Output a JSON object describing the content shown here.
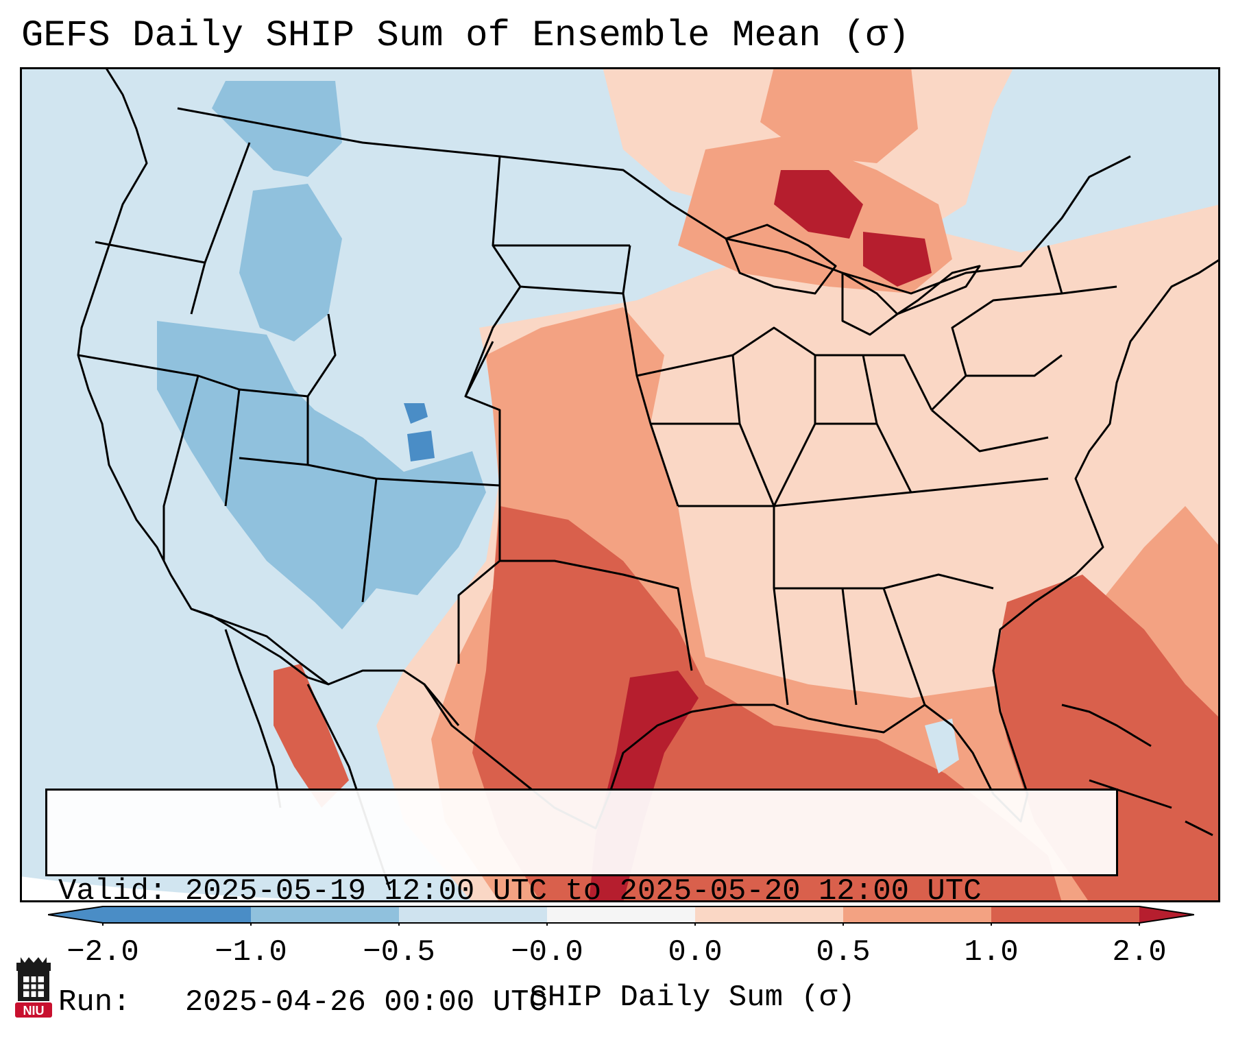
{
  "title": "GEFS Daily SHIP Sum of Ensemble Mean (σ)",
  "info": {
    "valid_label": "Valid:",
    "valid_value": "2025-05-19 12:00 UTC to 2025-05-20 12:00 UTC",
    "run_label": "Run:",
    "run_value": "2025-04-26 00:00 UTC"
  },
  "colorbar": {
    "label": "SHIP Daily Sum (σ)",
    "ticks": [
      "−2.0",
      "−1.0",
      "−0.5",
      "−0.0",
      "0.0",
      "0.5",
      "1.0",
      "2.0"
    ],
    "colors": [
      "#4a8dc6",
      "#90c1dd",
      "#cfe3ef",
      "#f5f5f5",
      "#fad7c5",
      "#f3a282",
      "#d9604c",
      "#b61e2e"
    ],
    "extend": "both"
  },
  "map_colors": {
    "ocean_background": "#d1e5f0",
    "outside_domain": "#ffffff",
    "borders": "#000000"
  },
  "logo": {
    "text": "NIU",
    "accent": "#c8102e"
  }
}
